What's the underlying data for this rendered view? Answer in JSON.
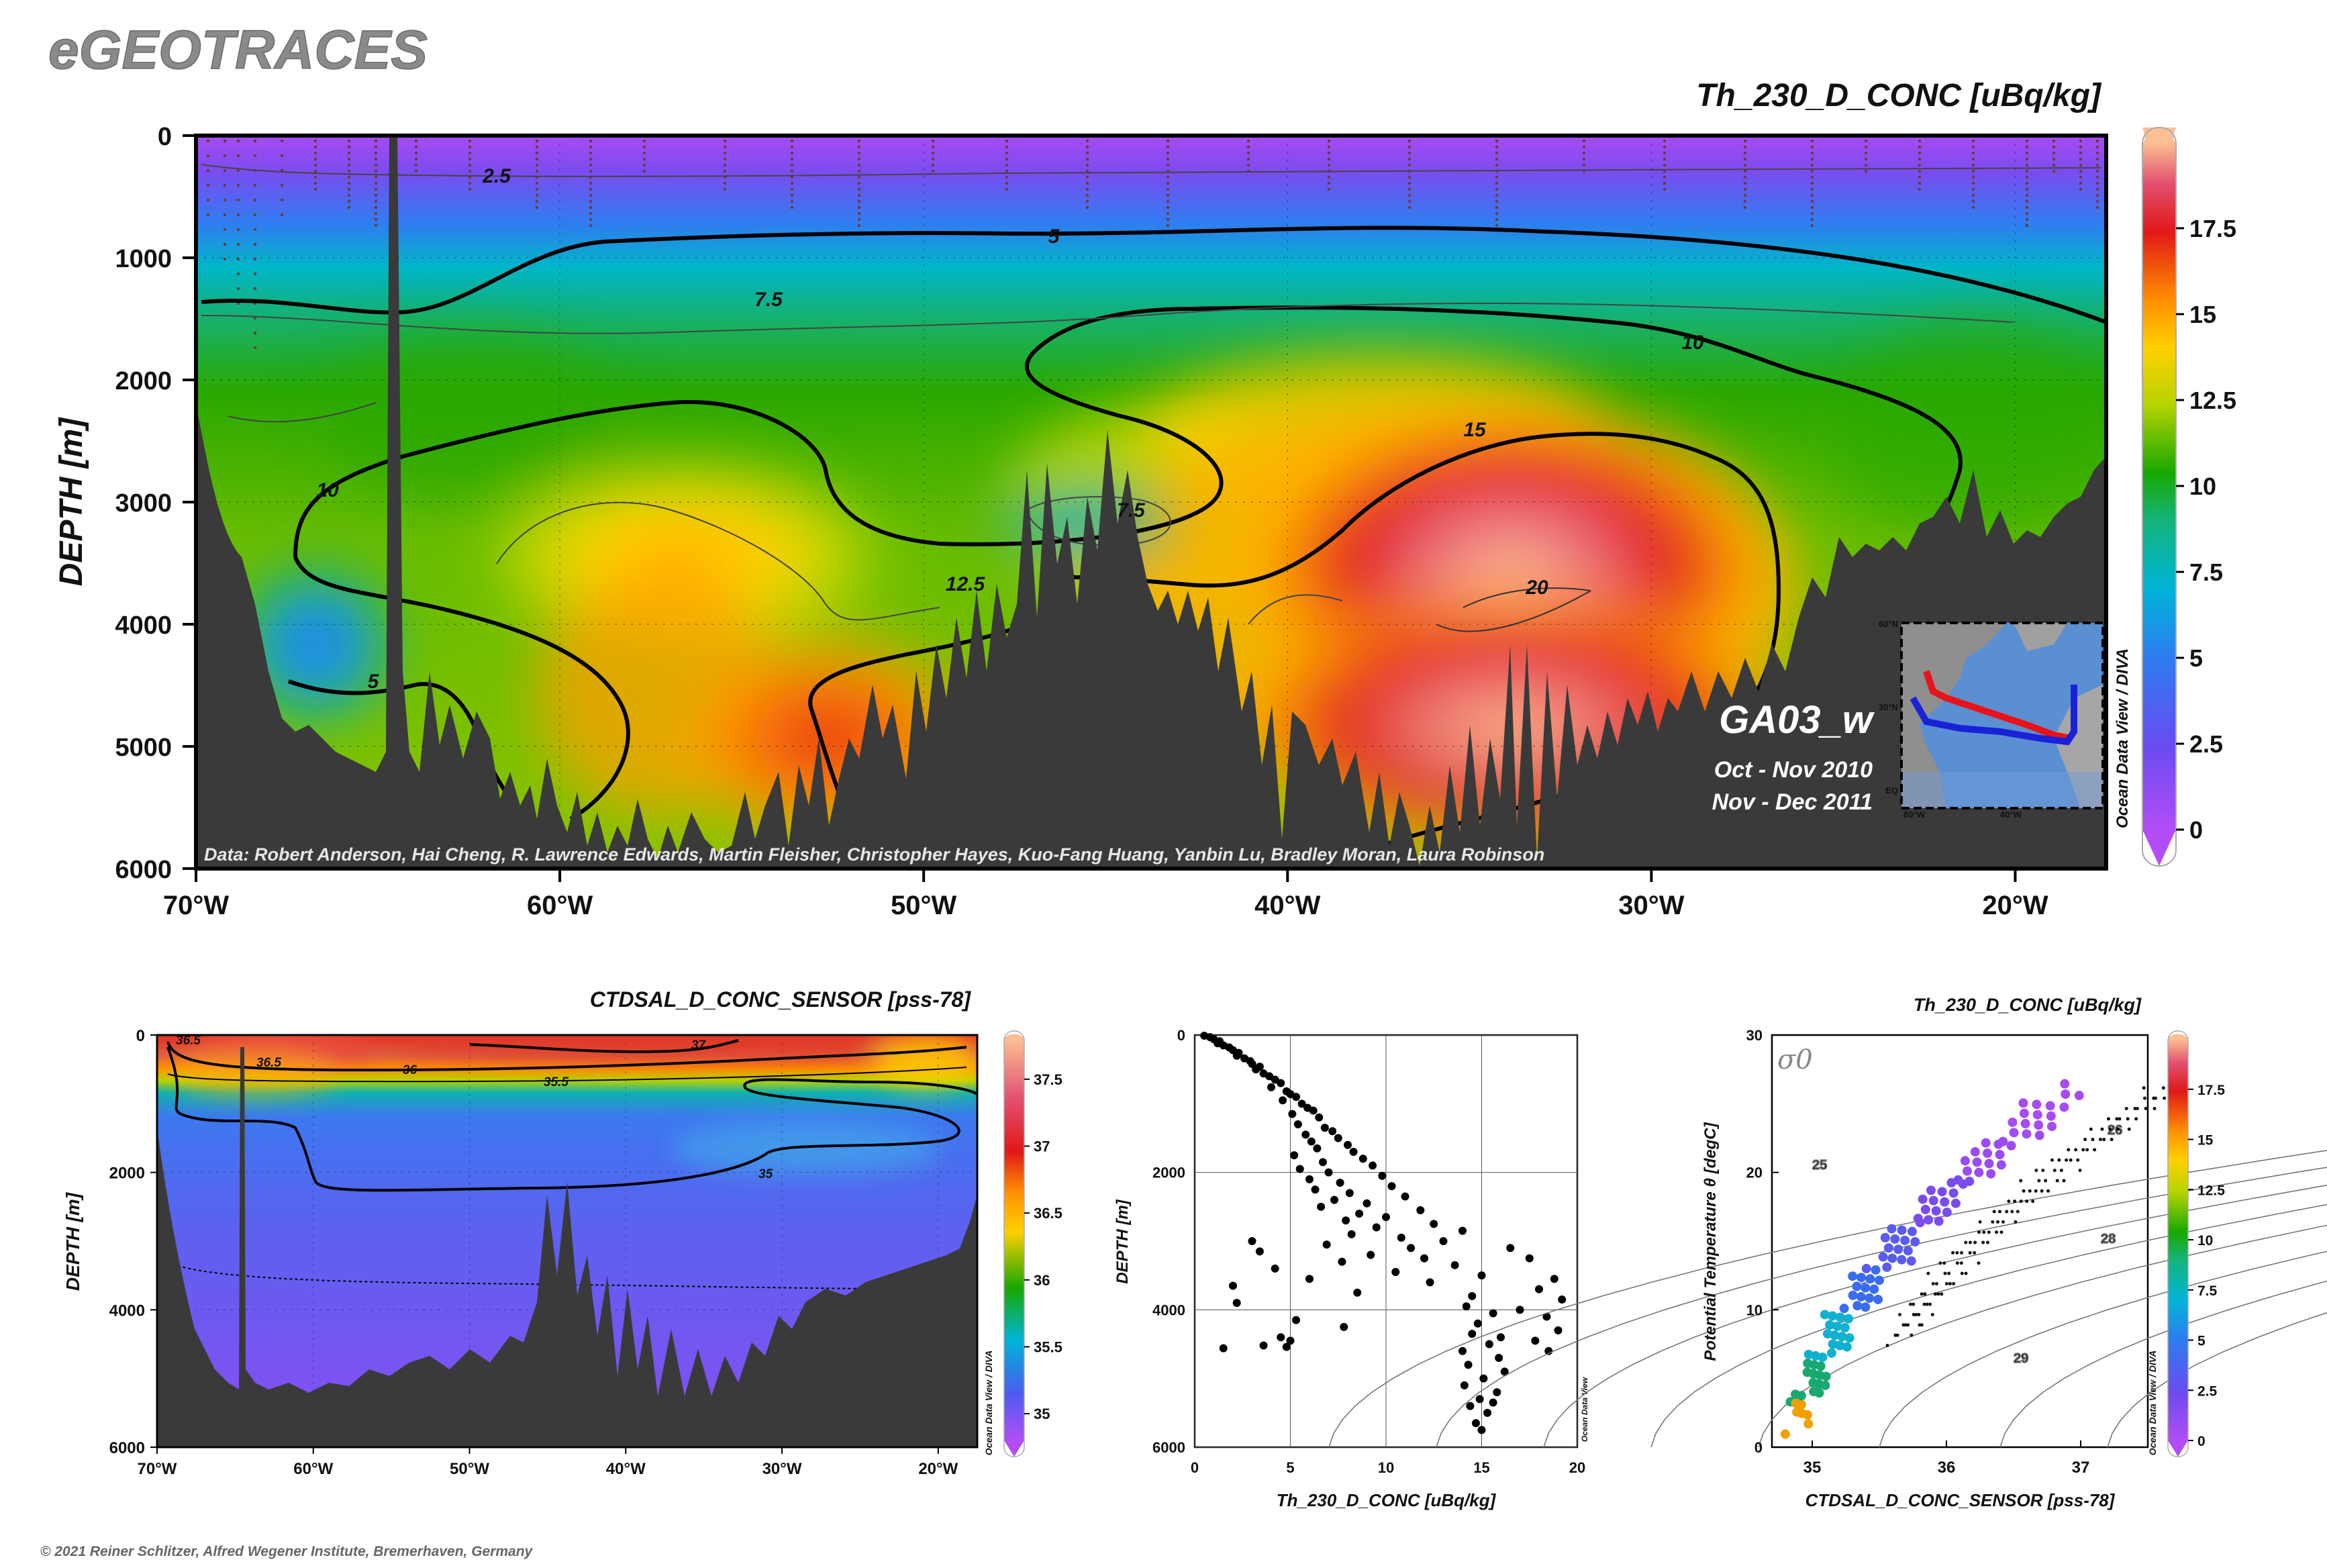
{
  "brand": "eGEOTRACES",
  "copyright": "© 2021 Reiner Schlitzer, Alfred Wegener Institute, Bremerhaven, Germany",
  "chart_data": [
    {
      "type": "heatmap",
      "title": "Th_230_D_CONC [uBq/kg]",
      "ylabel": "DEPTH [m]",
      "xlim": [
        -70,
        -17.5
      ],
      "ylim": [
        6000,
        0
      ],
      "x_ticks": [
        "70°W",
        "60°W",
        "50°W",
        "40°W",
        "30°W",
        "20°W"
      ],
      "y_ticks": [
        "0",
        "1000",
        "2000",
        "3000",
        "4000",
        "5000",
        "6000"
      ],
      "colorbar": {
        "min": 0,
        "max": 20,
        "ticks": [
          "0",
          "2.5",
          "5",
          "7.5",
          "10",
          "12.5",
          "15",
          "17.5"
        ],
        "label": "Ocean Data View / DIVA"
      },
      "contour_labels": [
        "2.5",
        "5",
        "7.5",
        "10",
        "10",
        "15",
        "12.5",
        "7.5",
        "20",
        "5"
      ],
      "section": "GA03_w",
      "cruise_dates": [
        "Oct - Nov 2010",
        "Nov - Dec 2011"
      ],
      "inset_map": {
        "lat_labels": [
          "60°N",
          "30°N",
          "EQ"
        ],
        "lon_labels": [
          "80°W",
          "40°W"
        ]
      },
      "credit": "Data: Robert Anderson, Hai Cheng, R. Lawrence Edwards, Martin Fleisher, Christopher Hayes, Kuo-Fang Huang, Yanbin Lu, Bradley Moran, Laura Robinson",
      "colors": {
        "low": "#9b3df0",
        "mid": "#12a800",
        "high": "#e01010",
        "max": "#fbbf94",
        "bathymetry": "#3a3a3a"
      }
    },
    {
      "type": "heatmap",
      "title": "CTDSAL_D_CONC_SENSOR [pss-78]",
      "ylabel": "DEPTH [m]",
      "xlim": [
        -70,
        -17.5
      ],
      "ylim": [
        6000,
        0
      ],
      "x_ticks": [
        "70°W",
        "60°W",
        "50°W",
        "40°W",
        "30°W",
        "20°W"
      ],
      "y_ticks": [
        "0",
        "2000",
        "4000",
        "6000"
      ],
      "colorbar": {
        "min": 34.8,
        "max": 37.8,
        "ticks": [
          "35",
          "35.5",
          "36",
          "36.5",
          "37",
          "37.5"
        ],
        "label": "Ocean Data View / DIVA"
      },
      "contour_labels": [
        "36.5",
        "36.5",
        "37",
        "36",
        "35.5",
        "35"
      ]
    },
    {
      "type": "scatter",
      "xlabel": "Th_230_D_CONC [uBq/kg]",
      "ylabel": "DEPTH [m]",
      "xlim": [
        0,
        20
      ],
      "ylim": [
        6000,
        0
      ],
      "x_ticks": [
        "0",
        "5",
        "10",
        "15",
        "20"
      ],
      "y_ticks": [
        "0",
        "2000",
        "4000",
        "6000"
      ],
      "watermark": "Ocean Data View",
      "points": [
        [
          0.5,
          10
        ],
        [
          0.8,
          30
        ],
        [
          1.0,
          60
        ],
        [
          1.3,
          90
        ],
        [
          1.2,
          120
        ],
        [
          1.5,
          150
        ],
        [
          1.8,
          180
        ],
        [
          2.0,
          220
        ],
        [
          2.3,
          260
        ],
        [
          2.2,
          300
        ],
        [
          2.6,
          340
        ],
        [
          2.9,
          380
        ],
        [
          3.0,
          420
        ],
        [
          3.4,
          460
        ],
        [
          3.2,
          500
        ],
        [
          3.6,
          560
        ],
        [
          3.9,
          600
        ],
        [
          4.2,
          650
        ],
        [
          4.5,
          700
        ],
        [
          4.0,
          760
        ],
        [
          4.8,
          820
        ],
        [
          5.0,
          860
        ],
        [
          5.3,
          900
        ],
        [
          4.6,
          950
        ],
        [
          5.6,
          1000
        ],
        [
          5.9,
          1060
        ],
        [
          6.2,
          1100
        ],
        [
          5.1,
          1150
        ],
        [
          6.5,
          1200
        ],
        [
          5.4,
          1300
        ],
        [
          6.8,
          1350
        ],
        [
          7.2,
          1400
        ],
        [
          5.8,
          1450
        ],
        [
          7.5,
          1500
        ],
        [
          6.1,
          1550
        ],
        [
          8.0,
          1600
        ],
        [
          6.4,
          1650
        ],
        [
          8.3,
          1700
        ],
        [
          5.2,
          1750
        ],
        [
          8.8,
          1800
        ],
        [
          6.7,
          1850
        ],
        [
          9.3,
          1900
        ],
        [
          5.5,
          1950
        ],
        [
          7.0,
          2000
        ],
        [
          9.8,
          2050
        ],
        [
          6.0,
          2100
        ],
        [
          7.6,
          2150
        ],
        [
          10.3,
          2200
        ],
        [
          6.3,
          2250
        ],
        [
          8.1,
          2300
        ],
        [
          11.0,
          2350
        ],
        [
          7.3,
          2400
        ],
        [
          9.0,
          2450
        ],
        [
          6.6,
          2500
        ],
        [
          11.8,
          2550
        ],
        [
          8.6,
          2600
        ],
        [
          10.0,
          2650
        ],
        [
          7.9,
          2700
        ],
        [
          12.5,
          2750
        ],
        [
          9.5,
          2800
        ],
        [
          14.0,
          2850
        ],
        [
          8.2,
          2900
        ],
        [
          10.8,
          2950
        ],
        [
          3.0,
          3000
        ],
        [
          13.0,
          3000
        ],
        [
          6.9,
          3050
        ],
        [
          11.3,
          3100
        ],
        [
          16.5,
          3100
        ],
        [
          3.4,
          3150
        ],
        [
          9.2,
          3200
        ],
        [
          12.0,
          3250
        ],
        [
          17.5,
          3250
        ],
        [
          7.7,
          3300
        ],
        [
          13.6,
          3350
        ],
        [
          4.2,
          3400
        ],
        [
          10.5,
          3450
        ],
        [
          15.0,
          3500
        ],
        [
          6.0,
          3550
        ],
        [
          18.8,
          3550
        ],
        [
          12.3,
          3600
        ],
        [
          2.0,
          3650
        ],
        [
          18.0,
          3700
        ],
        [
          8.5,
          3750
        ],
        [
          14.5,
          3800
        ],
        [
          19.2,
          3850
        ],
        [
          2.2,
          3900
        ],
        [
          14.2,
          3950
        ],
        [
          17.0,
          4000
        ],
        [
          15.6,
          4050
        ],
        [
          18.4,
          4100
        ],
        [
          5.3,
          4150
        ],
        [
          14.8,
          4200
        ],
        [
          7.8,
          4250
        ],
        [
          19.0,
          4300
        ],
        [
          14.5,
          4350
        ],
        [
          4.5,
          4400
        ],
        [
          16.0,
          4400
        ],
        [
          5.0,
          4450
        ],
        [
          17.8,
          4450
        ],
        [
          15.4,
          4500
        ],
        [
          3.6,
          4520
        ],
        [
          4.8,
          4540
        ],
        [
          1.5,
          4560
        ],
        [
          14.0,
          4600
        ],
        [
          18.5,
          4600
        ],
        [
          15.9,
          4700
        ],
        [
          14.3,
          4800
        ],
        [
          16.2,
          4900
        ],
        [
          15.1,
          5000
        ],
        [
          14.1,
          5100
        ],
        [
          15.8,
          5200
        ],
        [
          14.9,
          5300
        ],
        [
          15.6,
          5350
        ],
        [
          14.4,
          5400
        ],
        [
          15.3,
          5500
        ],
        [
          14.7,
          5650
        ],
        [
          15.0,
          5750
        ]
      ]
    },
    {
      "type": "scatter",
      "xlabel": "CTDSAL_D_CONC_SENSOR [pss-78]",
      "ylabel": "Potential Temperature θ [degC]",
      "xlim": [
        34.7,
        37.5
      ],
      "ylim": [
        0,
        30
      ],
      "x_ticks": [
        "35",
        "36",
        "37"
      ],
      "y_ticks": [
        "0",
        "10",
        "20",
        "30"
      ],
      "color_variable": "Th_230_D_CONC [uBq/kg]",
      "density_label": "σ0",
      "isopycnal_labels": [
        "25",
        "26",
        "28",
        "29"
      ],
      "colorbar": {
        "min": 0,
        "max": 20,
        "ticks": [
          "0",
          "2.5",
          "5",
          "7.5",
          "10",
          "12.5",
          "15",
          "17.5"
        ],
        "label": "Ocean Data View / DIVA"
      }
    }
  ]
}
